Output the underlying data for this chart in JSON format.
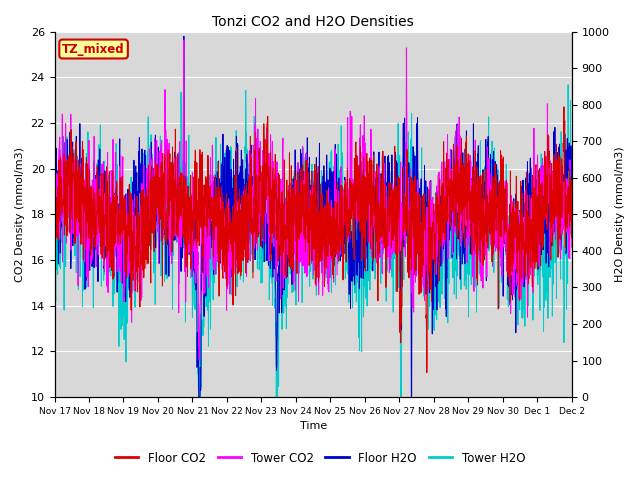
{
  "title": "Tonzi CO2 and H2O Densities",
  "xlabel": "Time",
  "ylabel_left": "CO2 Density (mmol/m3)",
  "ylabel_right": "H2O Density (mmol/m3)",
  "ylim_left": [
    10,
    26
  ],
  "ylim_right": [
    0,
    1000
  ],
  "yticks_left": [
    10,
    12,
    14,
    16,
    18,
    20,
    22,
    24,
    26
  ],
  "yticks_right": [
    0,
    100,
    200,
    300,
    400,
    500,
    600,
    700,
    800,
    900,
    1000
  ],
  "xtick_labels": [
    "Nov 17",
    "Nov 18",
    "Nov 19",
    "Nov 20",
    "Nov 21",
    "Nov 22",
    "Nov 23",
    "Nov 24",
    "Nov 25",
    "Nov 26",
    "Nov 27",
    "Nov 28",
    "Nov 29",
    "Nov 30",
    "Dec 1",
    "Dec 2"
  ],
  "annotation_text": "TZ_mixed",
  "annotation_color": "#cc0000",
  "annotation_bg": "#ffff99",
  "floor_co2_color": "#dd0000",
  "tower_co2_color": "#ff00ff",
  "floor_h2o_color": "#0000cc",
  "tower_h2o_color": "#00cccc",
  "legend_labels": [
    "Floor CO2",
    "Tower CO2",
    "Floor H2O",
    "Tower H2O"
  ],
  "background_color": "#d8d8d8",
  "grid_color": "#ffffff",
  "num_points": 2000,
  "figsize": [
    6.4,
    4.8
  ],
  "dpi": 100
}
